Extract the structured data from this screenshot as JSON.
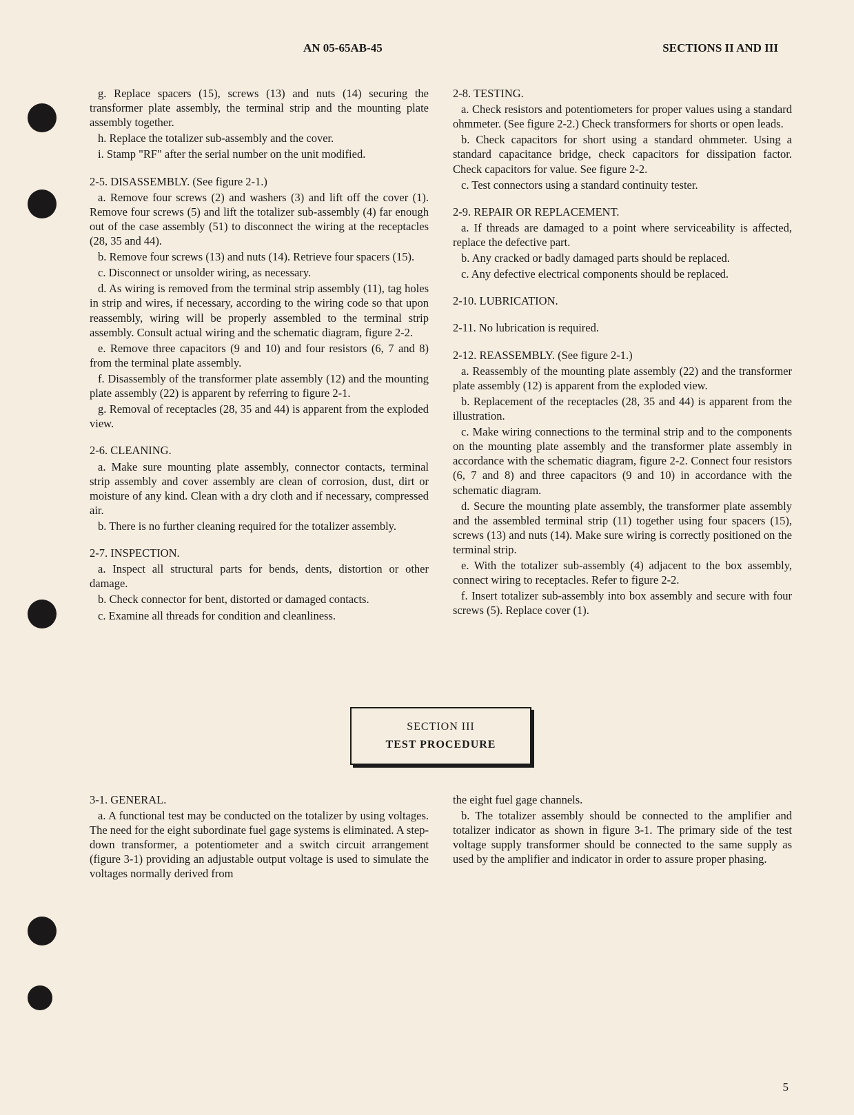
{
  "header": {
    "docNumber": "AN 05-65AB-45",
    "sections": "SECTIONS II AND III"
  },
  "leftColumn": {
    "g": "g. Replace spacers (15), screws (13) and nuts (14) securing the transformer plate assembly, the terminal strip and the mounting plate assembly together.",
    "h": "h. Replace the totalizer sub-assembly and the cover.",
    "i": "i. Stamp \"RF\" after the serial number on the unit modified.",
    "s25_head": "2-5. DISASSEMBLY. (See figure 2-1.)",
    "s25_a": "a. Remove four screws (2) and washers (3) and lift off the cover (1). Remove four screws (5) and lift the totalizer sub-assembly (4) far enough out of the case assembly (51) to disconnect the wiring at the receptacles (28, 35 and 44).",
    "s25_b": "b. Remove four screws (13) and nuts (14). Retrieve four spacers (15).",
    "s25_c": "c. Disconnect or unsolder wiring, as necessary.",
    "s25_d": "d. As wiring is removed from the terminal strip assembly (11), tag holes in strip and wires, if necessary, according to the wiring code so that upon reassembly, wiring will be properly assembled to the terminal strip assembly. Consult actual wiring and the schematic diagram, figure 2-2.",
    "s25_e": "e. Remove three capacitors (9 and 10) and four resistors (6, 7 and 8) from the terminal plate assembly.",
    "s25_f": "f. Disassembly of the transformer plate assembly (12) and the mounting plate assembly (22) is apparent by referring to figure 2-1.",
    "s25_g": "g. Removal of receptacles (28, 35 and 44) is apparent from the exploded view.",
    "s26_head": "2-6. CLEANING.",
    "s26_a": "a. Make sure mounting plate assembly, connector contacts, terminal strip assembly and cover assembly are clean of corrosion, dust, dirt or moisture of any kind. Clean with a dry cloth and if necessary, compressed air.",
    "s26_b": "b. There is no further cleaning required for the totalizer assembly.",
    "s27_head": "2-7. INSPECTION.",
    "s27_a": "a. Inspect all structural parts for bends, dents, distortion or other damage.",
    "s27_b": "b. Check connector for bent, distorted or damaged contacts.",
    "s27_c": "c. Examine all threads for condition and cleanliness."
  },
  "rightColumn": {
    "s28_head": "2-8. TESTING.",
    "s28_a": "a. Check resistors and potentiometers for proper values using a standard ohmmeter. (See figure 2-2.) Check transformers for shorts or open leads.",
    "s28_b": "b. Check capacitors for short using a standard ohmmeter. Using a standard capacitance bridge, check capacitors for dissipation factor. Check capacitors for value. See figure 2-2.",
    "s28_c": "c. Test connectors using a standard continuity tester.",
    "s29_head": "2-9. REPAIR OR REPLACEMENT.",
    "s29_a": "a. If threads are damaged to a point where serviceability is affected, replace the defective part.",
    "s29_b": "b. Any cracked or badly damaged parts should be replaced.",
    "s29_c": "c. Any defective electrical components should be replaced.",
    "s210_head": "2-10. LUBRICATION.",
    "s211": "2-11. No lubrication is required.",
    "s212_head": "2-12. REASSEMBLY. (See figure 2-1.)",
    "s212_a": "a. Reassembly of the mounting plate assembly (22) and the transformer plate assembly (12) is apparent from the exploded view.",
    "s212_b": "b. Replacement of the receptacles (28, 35 and 44) is apparent from the illustration.",
    "s212_c": "c. Make wiring connections to the terminal strip and to the components on the mounting plate assembly and the transformer plate assembly in accordance with the schematic diagram, figure 2-2. Connect four resistors (6, 7 and 8) and three capacitors (9 and 10) in accordance with the schematic diagram.",
    "s212_d": "d. Secure the mounting plate assembly, the transformer plate assembly and the assembled terminal strip (11) together using four spacers (15), screws (13) and nuts (14). Make sure wiring is correctly positioned on the terminal strip.",
    "s212_e": "e. With the totalizer sub-assembly (4) adjacent to the box assembly, connect wiring to receptacles. Refer to figure 2-2.",
    "s212_f": "f. Insert totalizer sub-assembly into box assembly and secure with four screws (5). Replace cover (1)."
  },
  "sectionBox": {
    "title": "SECTION III",
    "subtitle": "TEST PROCEDURE"
  },
  "bottomLeft": {
    "s31_head": "3-1. GENERAL.",
    "s31_a": "a. A functional test may be conducted on the totalizer by using voltages. The need for the eight subordinate fuel gage systems is eliminated. A step-down transformer, a potentiometer and a switch circuit arrangement (figure 3-1) providing an adjustable output voltage is used to simulate the voltages normally derived from"
  },
  "bottomRight": {
    "cont": "the eight fuel gage channels.",
    "s31_b": "b. The totalizer assembly should be connected to the amplifier and totalizer indicator as shown in figure 3-1. The primary side of the test voltage supply transformer should be connected to the same supply as used by the amplifier and indicator in order to assure proper phasing."
  },
  "pageNumber": "5"
}
